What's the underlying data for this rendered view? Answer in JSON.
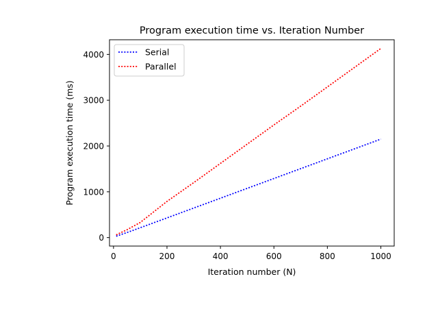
{
  "chart_data": {
    "type": "line",
    "title": "Program execution time vs. Iteration Number",
    "xlabel": "Iteration number (N)",
    "ylabel": "Program execution time (ms)",
    "xlim": [
      -15,
      1050
    ],
    "ylim": [
      -185,
      4320
    ],
    "xticks": [
      0,
      200,
      400,
      600,
      800,
      1000
    ],
    "yticks": [
      0,
      1000,
      2000,
      3000,
      4000
    ],
    "grid": false,
    "legend_position": "top-left",
    "x": [
      10,
      50,
      100,
      200,
      300,
      400,
      500,
      600,
      700,
      800,
      900,
      1000
    ],
    "series": [
      {
        "name": "Serial",
        "color": "#0000ff",
        "line_style": "dotted",
        "values": [
          30,
          110,
          215,
          430,
          645,
          860,
          1075,
          1290,
          1505,
          1720,
          1935,
          2150
        ]
      },
      {
        "name": "Parallel",
        "color": "#ff0000",
        "line_style": "dotted",
        "values": [
          60,
          170,
          330,
          790,
          1200,
          1620,
          2040,
          2460,
          2870,
          3290,
          3710,
          4130
        ]
      }
    ]
  }
}
